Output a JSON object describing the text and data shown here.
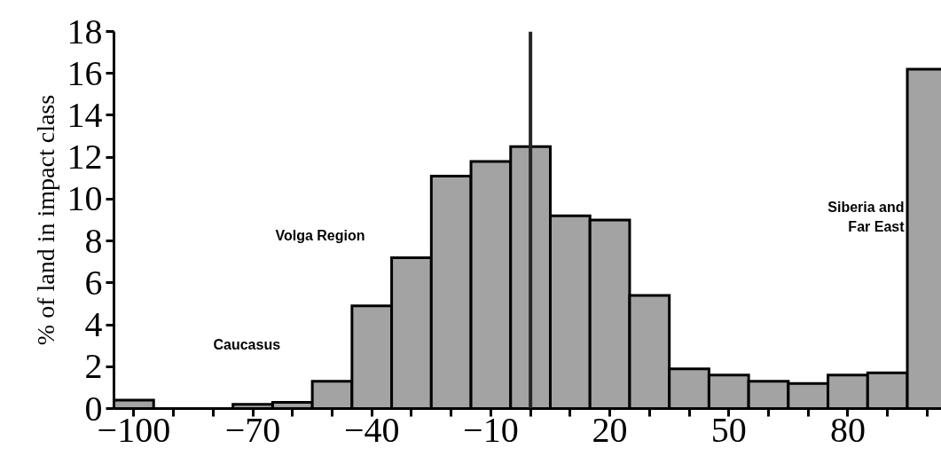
{
  "chart_data": {
    "type": "histogram",
    "ylabel": "% of land in impact class",
    "bins": [
      -105,
      -95,
      -85,
      -75,
      -65,
      -55,
      -45,
      -35,
      -25,
      -15,
      -5,
      5,
      15,
      25,
      35,
      45,
      55,
      65,
      75,
      85,
      95,
      105
    ],
    "values": [
      0.4,
      0,
      0,
      0.2,
      0.3,
      1.3,
      4.9,
      7.2,
      11.1,
      11.8,
      12.5,
      9.2,
      9.0,
      5.4,
      1.9,
      1.6,
      1.3,
      1.2,
      1.6,
      1.7,
      16.2
    ],
    "color": "#a3a3a3",
    "xlim": [
      -105,
      103.6
    ],
    "ylim": [
      0,
      18
    ],
    "xticks": [
      {
        "value": -100,
        "label": "−100"
      },
      {
        "value": -90,
        "label": null
      },
      {
        "value": -80,
        "label": null
      },
      {
        "value": -70,
        "label": "−70"
      },
      {
        "value": -60,
        "label": null
      },
      {
        "value": -50,
        "label": null
      },
      {
        "value": -40,
        "label": "−40"
      },
      {
        "value": -30,
        "label": null
      },
      {
        "value": -20,
        "label": null
      },
      {
        "value": -10,
        "label": "−10"
      },
      {
        "value": 0,
        "label": null
      },
      {
        "value": 10,
        "label": null
      },
      {
        "value": 20,
        "label": "20"
      },
      {
        "value": 30,
        "label": null
      },
      {
        "value": 40,
        "label": null
      },
      {
        "value": 50,
        "label": "50"
      },
      {
        "value": 60,
        "label": null
      },
      {
        "value": 70,
        "label": null
      },
      {
        "value": 80,
        "label": "80"
      },
      {
        "value": 90,
        "label": null
      },
      {
        "value": 100,
        "label": null
      }
    ],
    "yticks": [
      0,
      2,
      4,
      6,
      8,
      10,
      12,
      14,
      16,
      18
    ],
    "ref_lines": [
      {
        "axis": "x",
        "value": 0,
        "color": "#262626"
      }
    ],
    "annotations": [
      "Caucasus",
      "Volga Region",
      "Siberia and\nFar East"
    ],
    "grid": false
  }
}
